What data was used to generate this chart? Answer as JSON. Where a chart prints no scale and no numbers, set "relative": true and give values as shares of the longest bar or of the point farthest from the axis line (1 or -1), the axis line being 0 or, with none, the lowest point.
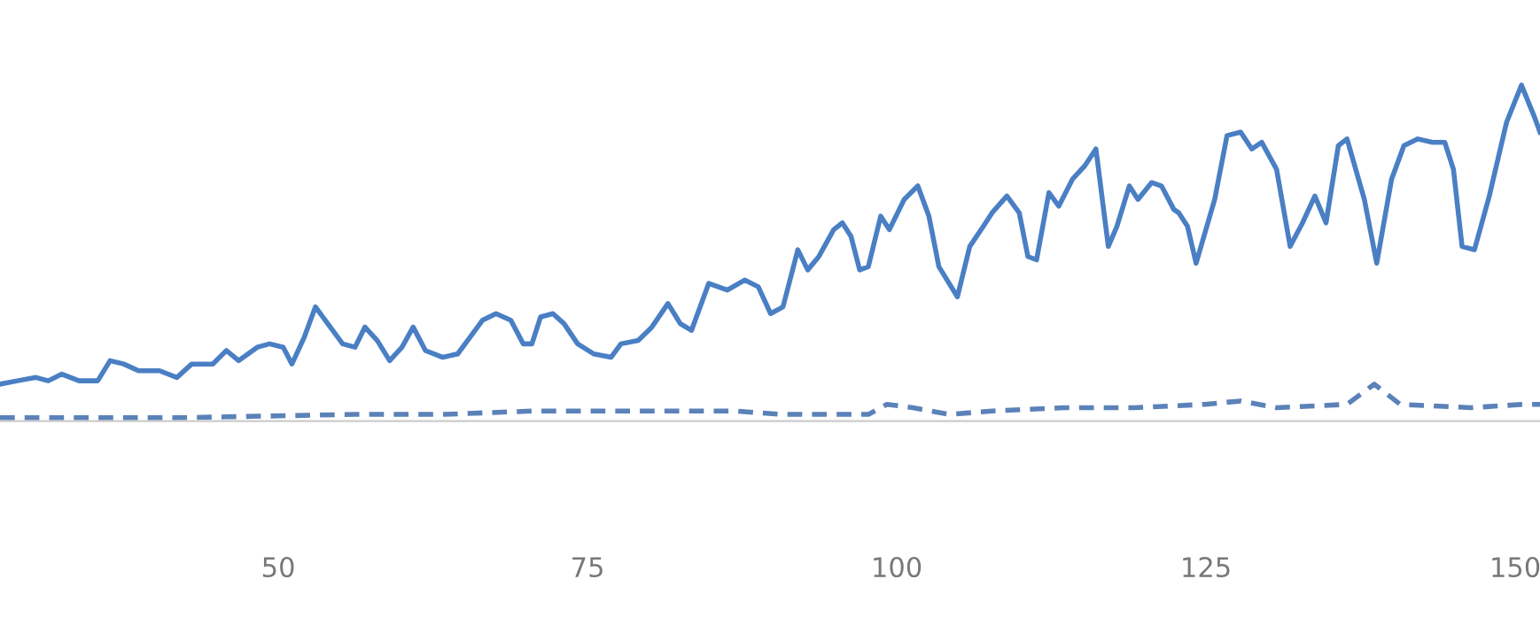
{
  "chart_data": {
    "type": "line",
    "relative": true,
    "xlim": [
      27.5,
      152
    ],
    "xticks": [
      50,
      75,
      100,
      125,
      150
    ],
    "tick_labels": "x",
    "grid": false,
    "legend": false,
    "series": [
      {
        "color": "#4a7fc4",
        "line_style": "solid",
        "x": [
          27.5,
          28.9,
          30.4,
          31.4,
          32.5,
          33.9,
          35.4,
          36.4,
          37.5,
          38.7,
          40.4,
          41.8,
          43.0,
          44.7,
          45.8,
          46.8,
          48.3,
          49.3,
          50.4,
          51.1,
          52.1,
          53.0,
          54.0,
          55.2,
          56.2,
          57.0,
          58.0,
          59.0,
          60.0,
          60.9,
          61.9,
          63.3,
          64.5,
          65.5,
          66.5,
          67.6,
          68.8,
          69.8,
          70.5,
          71.2,
          72.2,
          73.1,
          74.2,
          75.5,
          76.9,
          77.7,
          79.1,
          80.2,
          81.5,
          82.5,
          83.4,
          84.8,
          86.3,
          87.7,
          88.8,
          89.8,
          90.8,
          92.0,
          92.8,
          93.7,
          94.9,
          95.6,
          96.3,
          97.0,
          97.7,
          98.7,
          99.4,
          100.6,
          101.7,
          102.6,
          103.4,
          104.9,
          105.9,
          107.0,
          107.7,
          108.9,
          109.9,
          110.6,
          111.3,
          112.3,
          113.1,
          114.2,
          115.2,
          116.1,
          117.1,
          117.8,
          118.8,
          119.5,
          120.6,
          121.4,
          122.4,
          122.8,
          123.5,
          124.2,
          125.7,
          126.7,
          127.8,
          128.7,
          129.5,
          130.7,
          131.8,
          132.8,
          133.8,
          134.7,
          135.7,
          136.4,
          137.8,
          138.8,
          140.0,
          141.0,
          142.1,
          143.3,
          144.3,
          145.0,
          145.7,
          146.7,
          147.9,
          149.3,
          150.5,
          151.5,
          152.0
        ],
        "values": [
          0.11,
          0.12,
          0.13,
          0.12,
          0.14,
          0.12,
          0.12,
          0.18,
          0.17,
          0.15,
          0.15,
          0.13,
          0.17,
          0.17,
          0.21,
          0.18,
          0.22,
          0.23,
          0.22,
          0.17,
          0.25,
          0.34,
          0.29,
          0.23,
          0.22,
          0.28,
          0.24,
          0.18,
          0.22,
          0.28,
          0.21,
          0.19,
          0.2,
          0.25,
          0.3,
          0.32,
          0.3,
          0.23,
          0.23,
          0.31,
          0.32,
          0.29,
          0.23,
          0.2,
          0.19,
          0.23,
          0.24,
          0.28,
          0.35,
          0.29,
          0.27,
          0.41,
          0.39,
          0.42,
          0.4,
          0.32,
          0.34,
          0.51,
          0.45,
          0.49,
          0.57,
          0.59,
          0.55,
          0.45,
          0.46,
          0.61,
          0.57,
          0.66,
          0.7,
          0.61,
          0.46,
          0.37,
          0.52,
          0.58,
          0.62,
          0.67,
          0.62,
          0.49,
          0.48,
          0.68,
          0.64,
          0.72,
          0.76,
          0.81,
          0.52,
          0.58,
          0.7,
          0.66,
          0.71,
          0.7,
          0.63,
          0.62,
          0.58,
          0.47,
          0.66,
          0.85,
          0.86,
          0.81,
          0.83,
          0.75,
          0.52,
          0.59,
          0.67,
          0.59,
          0.82,
          0.84,
          0.66,
          0.47,
          0.72,
          0.82,
          0.84,
          0.83,
          0.83,
          0.75,
          0.52,
          0.51,
          0.67,
          0.89,
          1.0,
          0.91,
          0.86
        ]
      },
      {
        "color": "#5b82b8",
        "line_style": "dashed",
        "x": [
          27.5,
          41.8,
          56.2,
          63.3,
          70.5,
          77.7,
          87.0,
          90.6,
          97.7,
          99.2,
          101.3,
          104.2,
          107.7,
          113.5,
          119.2,
          124.9,
          127.8,
          130.7,
          136.4,
          138.6,
          140.7,
          146.4,
          150.7,
          152.0
        ],
        "values": [
          0.01,
          0.01,
          0.02,
          0.02,
          0.03,
          0.03,
          0.03,
          0.02,
          0.02,
          0.05,
          0.04,
          0.02,
          0.03,
          0.04,
          0.04,
          0.05,
          0.06,
          0.04,
          0.05,
          0.11,
          0.05,
          0.04,
          0.05,
          0.05
        ]
      }
    ]
  }
}
